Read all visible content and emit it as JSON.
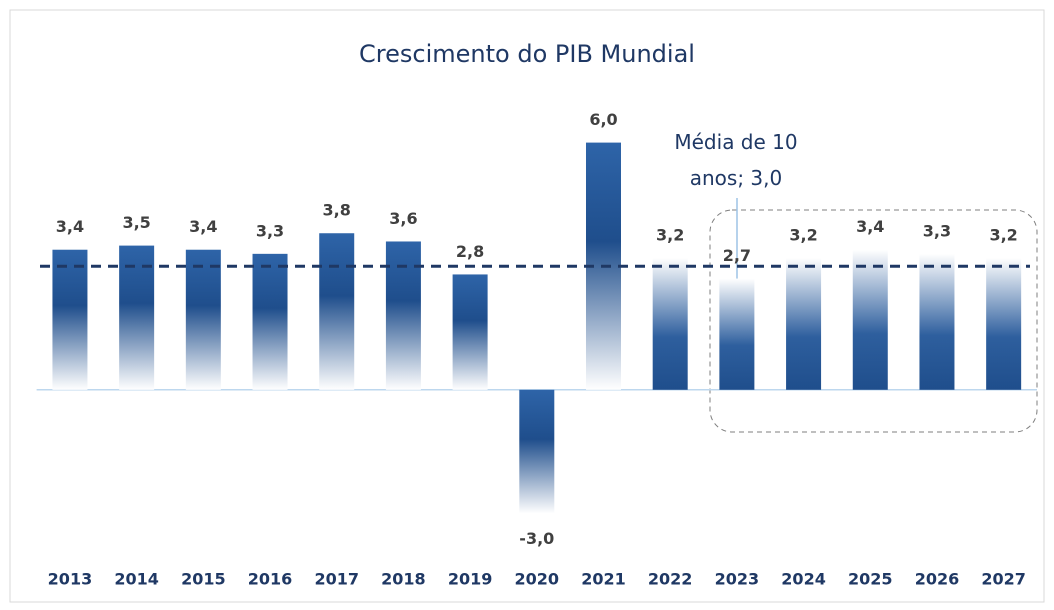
{
  "chart_data": {
    "type": "bar",
    "title": "Crescimento do PIB Mundial",
    "categories": [
      "2013",
      "2014",
      "2015",
      "2016",
      "2017",
      "2018",
      "2019",
      "2020",
      "2021",
      "2022",
      "2023",
      "2024",
      "2025",
      "2026",
      "2027"
    ],
    "values": [
      3.4,
      3.5,
      3.4,
      3.3,
      3.8,
      3.6,
      2.8,
      -3.0,
      6.0,
      3.2,
      2.7,
      3.2,
      3.4,
      3.3,
      3.2
    ],
    "value_labels": [
      "3,4",
      "3,5",
      "3,4",
      "3,3",
      "3,8",
      "3,6",
      "2,8",
      "-3,0",
      "6,0",
      "3,2",
      "2,7",
      "3,2",
      "3,4",
      "3,3",
      "3,2"
    ],
    "color": "#1f4e8c",
    "average": {
      "value": 3.0,
      "label": "Média de 10 anos; 3,0",
      "color": "#1f3864"
    },
    "ylim": [
      -3.5,
      6.5
    ]
  }
}
